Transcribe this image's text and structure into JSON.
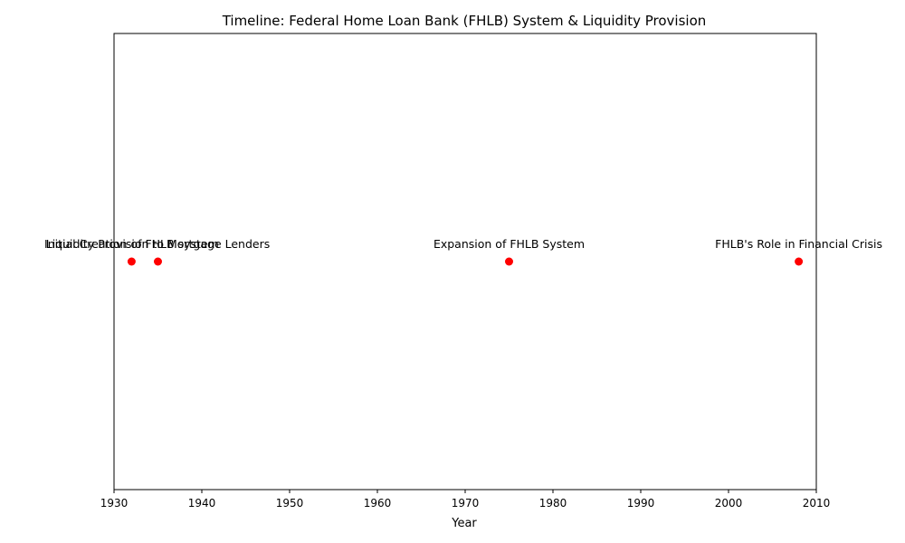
{
  "chart_data": {
    "type": "scatter",
    "title": "Timeline: Federal Home Loan Bank (FHLB) System & Liquidity Provision",
    "xlabel": "Year",
    "ylabel": "",
    "xlim": [
      1930,
      2010
    ],
    "ylim": [
      -1,
      1
    ],
    "x_ticks": [
      "1930",
      "1940",
      "1950",
      "1960",
      "1970",
      "1980",
      "1990",
      "2000",
      "2010"
    ],
    "y_ticks": [],
    "grid": false,
    "legend": "none",
    "marker_color": "#ff0000",
    "series": [
      {
        "points": [
          {
            "x": 1932,
            "y": 0,
            "label": "Initial Creation of FHLB system"
          },
          {
            "x": 1935,
            "y": 0,
            "label": "Liquidity Provision to Mortgage Lenders"
          },
          {
            "x": 1975,
            "y": 0,
            "label": "Expansion of FHLB System"
          },
          {
            "x": 2008,
            "y": 0,
            "label": "FHLB's Role in Financial Crisis"
          }
        ]
      }
    ]
  }
}
